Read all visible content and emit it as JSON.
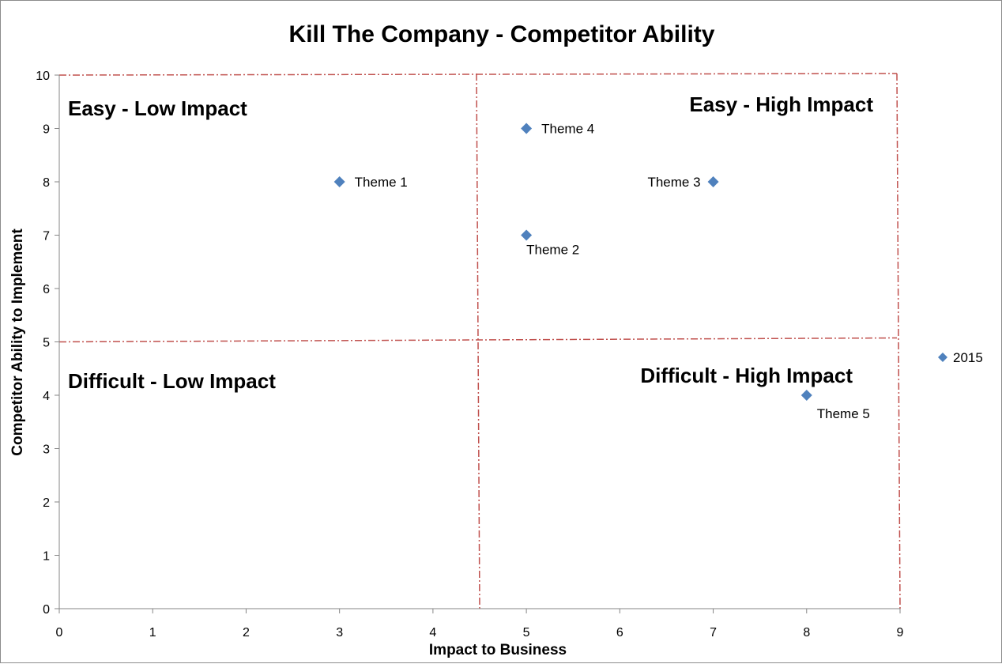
{
  "chart_data": {
    "type": "scatter",
    "title": "Kill The Company - Competitor Ability",
    "xlabel": "Impact to Business",
    "ylabel": "Competitor Ability to Implement",
    "xlim": [
      0,
      9
    ],
    "ylim": [
      0,
      10
    ],
    "xticks": [
      "0",
      "1",
      "2",
      "3",
      "4",
      "5",
      "6",
      "7",
      "8",
      "9"
    ],
    "yticks": [
      "0",
      "1",
      "2",
      "3",
      "4",
      "5",
      "6",
      "7",
      "8",
      "9",
      "10"
    ],
    "grid": false,
    "series": [
      {
        "name": "2015",
        "color": "#4f81bd",
        "marker": "diamond",
        "points": [
          {
            "x": 3,
            "y": 8,
            "label": "Theme 1",
            "label_side": "right"
          },
          {
            "x": 5,
            "y": 7,
            "label": "Theme 2",
            "label_side": "below"
          },
          {
            "x": 7,
            "y": 8,
            "label": "Theme 3",
            "label_side": "left"
          },
          {
            "x": 5,
            "y": 9,
            "label": "Theme 4",
            "label_side": "right"
          },
          {
            "x": 8,
            "y": 4,
            "label": "Theme 5",
            "label_side": "below-right"
          }
        ]
      }
    ],
    "quadrant_lines": {
      "color": "#c0504d",
      "style": "dash-dot",
      "x_divider": 4.5,
      "y_divider": 5,
      "top": 10,
      "right": 9
    },
    "quadrant_labels": {
      "top_left": "Easy - Low Impact",
      "top_right": "Easy - High Impact",
      "bottom_left": "Difficult - Low Impact",
      "bottom_right": "Difficult - High Impact"
    },
    "legend": {
      "position": "right",
      "entries": [
        "2015"
      ]
    }
  }
}
